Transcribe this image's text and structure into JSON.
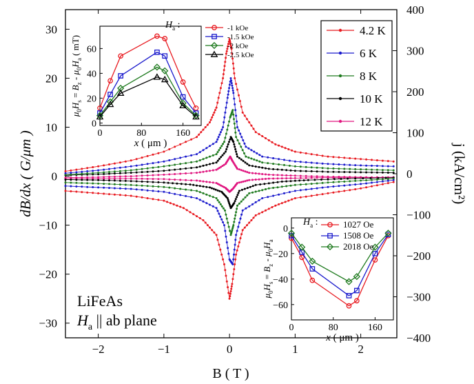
{
  "chart_data": [
    {
      "id": "main",
      "type": "scatter",
      "xlabel": "B ( T )",
      "ylabel": "dB/dx ( G/μm )",
      "y2label": "j (kA/cm²)",
      "xlim": [
        -2.5,
        2.55
      ],
      "ylim": [
        -33,
        34
      ],
      "y2lim": [
        -400,
        400
      ],
      "xticks": [
        -2,
        -1,
        0,
        1,
        2
      ],
      "yticks": [
        -30,
        -20,
        -10,
        0,
        10,
        20,
        30
      ],
      "y2ticks": [
        -400,
        -300,
        -200,
        -100,
        0,
        100,
        200,
        300,
        400
      ],
      "annotation": {
        "line1": "LiFeAs",
        "line2_h": "H",
        "line2_sub": "a",
        "line2_rest": " || ab plane"
      },
      "legend_position": "top-right",
      "series": [
        {
          "name": "4.2 K",
          "color": "#e8191f",
          "upper": [
            [
              -2.5,
              1.0
            ],
            [
              -2,
              2.0
            ],
            [
              -1.5,
              3.2
            ],
            [
              -1,
              5.0
            ],
            [
              -0.5,
              8.0
            ],
            [
              -0.3,
              11.0
            ],
            [
              -0.2,
              14.0
            ],
            [
              -0.1,
              20.0
            ],
            [
              -0.05,
              25.0
            ],
            [
              0,
              28.0
            ],
            [
              0.03,
              26.0
            ],
            [
              0.08,
              20.0
            ],
            [
              0.2,
              13.0
            ],
            [
              0.4,
              9.0
            ],
            [
              0.7,
              6.5
            ],
            [
              1,
              5.0
            ],
            [
              1.5,
              4.0
            ],
            [
              2,
              3.5
            ],
            [
              2.5,
              3.0
            ]
          ],
          "lower": [
            [
              -2.5,
              -3.0
            ],
            [
              -2,
              -3.5
            ],
            [
              -1.5,
              -4.0
            ],
            [
              -1,
              -5.0
            ],
            [
              -0.7,
              -6.5
            ],
            [
              -0.4,
              -9.0
            ],
            [
              -0.2,
              -12.0
            ],
            [
              -0.08,
              -18.0
            ],
            [
              0,
              -25.0
            ],
            [
              0.04,
              -22.0
            ],
            [
              0.1,
              -16.0
            ],
            [
              0.2,
              -11.0
            ],
            [
              0.4,
              -8.0
            ],
            [
              0.7,
              -6.0
            ],
            [
              1,
              -4.5
            ],
            [
              1.5,
              -3.5
            ],
            [
              2,
              -2.5
            ],
            [
              2.5,
              -1.2
            ]
          ]
        },
        {
          "name": "6 K",
          "color": "#1a1acc",
          "upper": [
            [
              -2.5,
              0.6
            ],
            [
              -2,
              1.2
            ],
            [
              -1.5,
              2.0
            ],
            [
              -1,
              3.0
            ],
            [
              -0.5,
              4.5
            ],
            [
              -0.2,
              7.0
            ],
            [
              -0.1,
              10.0
            ],
            [
              -0.03,
              16.0
            ],
            [
              0.02,
              20.0
            ],
            [
              0.06,
              17.0
            ],
            [
              0.12,
              10.0
            ],
            [
              0.25,
              6.0
            ],
            [
              0.5,
              4.0
            ],
            [
              1,
              3.0
            ],
            [
              1.5,
              2.5
            ],
            [
              2,
              2.2
            ],
            [
              2.5,
              2.0
            ]
          ],
          "lower": [
            [
              -2.5,
              -2.0
            ],
            [
              -2,
              -2.3
            ],
            [
              -1.5,
              -2.6
            ],
            [
              -1,
              -3.2
            ],
            [
              -0.5,
              -4.5
            ],
            [
              -0.2,
              -6.5
            ],
            [
              -0.08,
              -10.0
            ],
            [
              0,
              -17.0
            ],
            [
              0.05,
              -18.0
            ],
            [
              0.1,
              -12.0
            ],
            [
              0.2,
              -7.0
            ],
            [
              0.5,
              -4.5
            ],
            [
              1,
              -3.0
            ],
            [
              1.5,
              -2.2
            ],
            [
              2,
              -1.6
            ],
            [
              2.5,
              -0.8
            ]
          ]
        },
        {
          "name": "8 K",
          "color": "#1e7a1e",
          "upper": [
            [
              -2.5,
              0.3
            ],
            [
              -2,
              0.7
            ],
            [
              -1.5,
              1.2
            ],
            [
              -1,
              2.0
            ],
            [
              -0.5,
              3.0
            ],
            [
              -0.2,
              4.5
            ],
            [
              -0.08,
              7.0
            ],
            [
              0.01,
              12.0
            ],
            [
              0.05,
              13.5
            ],
            [
              0.1,
              8.0
            ],
            [
              0.25,
              4.0
            ],
            [
              0.5,
              2.8
            ],
            [
              1,
              2.0
            ],
            [
              1.5,
              1.6
            ],
            [
              2,
              1.4
            ],
            [
              2.5,
              1.2
            ]
          ],
          "lower": [
            [
              -2.5,
              -1.3
            ],
            [
              -2,
              -1.5
            ],
            [
              -1.5,
              -1.8
            ],
            [
              -1,
              -2.2
            ],
            [
              -0.5,
              -3.0
            ],
            [
              -0.2,
              -4.5
            ],
            [
              -0.07,
              -7.0
            ],
            [
              0.02,
              -12.0
            ],
            [
              0.06,
              -10.0
            ],
            [
              0.12,
              -6.0
            ],
            [
              0.3,
              -3.5
            ],
            [
              0.6,
              -2.5
            ],
            [
              1,
              -1.8
            ],
            [
              1.5,
              -1.3
            ],
            [
              2,
              -0.9
            ],
            [
              2.5,
              -0.5
            ]
          ]
        },
        {
          "name": "10 K",
          "color": "#000000",
          "upper": [
            [
              -2.5,
              0.2
            ],
            [
              -2,
              0.4
            ],
            [
              -1.5,
              0.7
            ],
            [
              -1,
              1.1
            ],
            [
              -0.5,
              1.8
            ],
            [
              -0.2,
              2.8
            ],
            [
              -0.06,
              5.0
            ],
            [
              0.02,
              8.0
            ],
            [
              0.06,
              7.0
            ],
            [
              0.12,
              4.0
            ],
            [
              0.3,
              2.2
            ],
            [
              0.6,
              1.5
            ],
            [
              1,
              1.1
            ],
            [
              1.5,
              0.9
            ],
            [
              2,
              0.8
            ],
            [
              2.5,
              0.7
            ]
          ],
          "lower": [
            [
              -2.5,
              -0.7
            ],
            [
              -2,
              -0.8
            ],
            [
              -1.5,
              -1.0
            ],
            [
              -1,
              -1.3
            ],
            [
              -0.6,
              -1.7
            ],
            [
              -0.3,
              -2.3
            ],
            [
              -0.12,
              -3.2
            ],
            [
              -0.03,
              -4.5
            ],
            [
              0.02,
              -6.5
            ],
            [
              0.07,
              -5.5
            ],
            [
              0.15,
              -3.0
            ],
            [
              0.4,
              -1.8
            ],
            [
              0.8,
              -1.1
            ],
            [
              1.2,
              -0.8
            ],
            [
              1.8,
              -0.5
            ],
            [
              2.5,
              -0.3
            ]
          ]
        },
        {
          "name": "12 K",
          "color": "#e0157f",
          "upper": [
            [
              -2.5,
              -0.3
            ],
            [
              -2,
              -0.2
            ],
            [
              -1.5,
              0.0
            ],
            [
              -1,
              0.3
            ],
            [
              -0.5,
              0.7
            ],
            [
              -0.2,
              1.3
            ],
            [
              -0.06,
              2.5
            ],
            [
              0.01,
              4.0
            ],
            [
              0.05,
              3.0
            ],
            [
              0.12,
              1.5
            ],
            [
              0.3,
              0.7
            ],
            [
              0.6,
              0.3
            ],
            [
              1,
              0.1
            ],
            [
              1.5,
              -0.1
            ],
            [
              2,
              -0.2
            ],
            [
              2.5,
              -0.3
            ]
          ],
          "lower": [
            [
              -2.5,
              -0.5
            ],
            [
              -2,
              -0.5
            ],
            [
              -1.5,
              -0.5
            ],
            [
              -1,
              -0.6
            ],
            [
              -0.5,
              -0.9
            ],
            [
              -0.2,
              -1.4
            ],
            [
              -0.06,
              -2.4
            ],
            [
              0,
              -3.2
            ],
            [
              0.05,
              -2.6
            ],
            [
              0.12,
              -1.4
            ],
            [
              0.3,
              -0.8
            ],
            [
              0.6,
              -0.5
            ],
            [
              1,
              -0.4
            ],
            [
              1.5,
              -0.3
            ],
            [
              2,
              -0.3
            ],
            [
              2.5,
              -0.2
            ]
          ]
        }
      ]
    },
    {
      "id": "inset_top",
      "type": "line",
      "xlabel": "x ( μm )",
      "ylabel": "μ0Hs = Bz - μ0Ha (mT)",
      "xlim": [
        0,
        195
      ],
      "ylim": [
        -2,
        78
      ],
      "xticks": [
        0,
        80,
        160
      ],
      "yticks": [
        0,
        20,
        40,
        60
      ],
      "legend_title": "Ha :",
      "series": [
        {
          "name": "-1 kOe",
          "marker": "circle",
          "color": "#e8191f",
          "x": [
            0,
            20,
            40,
            110,
            125,
            160,
            185
          ],
          "y": [
            12,
            34,
            54,
            70,
            68,
            33,
            12
          ]
        },
        {
          "name": "-1.5 kOe",
          "marker": "square",
          "color": "#1a1acc",
          "x": [
            0,
            20,
            40,
            110,
            125,
            160,
            185
          ],
          "y": [
            8,
            23,
            38,
            57,
            54,
            21,
            8
          ]
        },
        {
          "name": "-2 kOe",
          "marker": "diamond",
          "color": "#1e7a1e",
          "x": [
            0,
            20,
            40,
            110,
            125,
            160,
            185
          ],
          "y": [
            6,
            17,
            28,
            45,
            42,
            16,
            6
          ]
        },
        {
          "name": "-2.5 kOe",
          "marker": "triangle",
          "color": "#000000",
          "x": [
            0,
            20,
            40,
            110,
            125,
            160,
            185
          ],
          "y": [
            5,
            15,
            24,
            37,
            35,
            14,
            5
          ]
        }
      ]
    },
    {
      "id": "inset_bottom",
      "type": "line",
      "xlabel": "x ( μm )",
      "ylabel": "μ0Hs = Bz - μ0Ha",
      "xlim": [
        0,
        195
      ],
      "ylim": [
        -72,
        8
      ],
      "xticks": [
        0,
        80,
        160
      ],
      "yticks": [
        0,
        -20,
        -40,
        -60
      ],
      "legend_title": "Ha :",
      "series": [
        {
          "name": "1027 Oe",
          "marker": "circle",
          "color": "#e8191f",
          "x": [
            0,
            20,
            40,
            110,
            125,
            160,
            185
          ],
          "y": [
            -8,
            -23,
            -41,
            -61,
            -57,
            -25,
            -6
          ]
        },
        {
          "name": "1508 Oe",
          "marker": "square",
          "color": "#1a1acc",
          "x": [
            0,
            20,
            40,
            110,
            125,
            160,
            185
          ],
          "y": [
            -6,
            -19,
            -32,
            -53,
            -49,
            -20,
            -5
          ]
        },
        {
          "name": "2018 Oe",
          "marker": "diamond",
          "color": "#1e7a1e",
          "x": [
            0,
            20,
            40,
            110,
            125,
            160,
            185
          ],
          "y": [
            -4,
            -15,
            -26,
            -42,
            -38,
            -15,
            -4
          ]
        }
      ]
    }
  ]
}
